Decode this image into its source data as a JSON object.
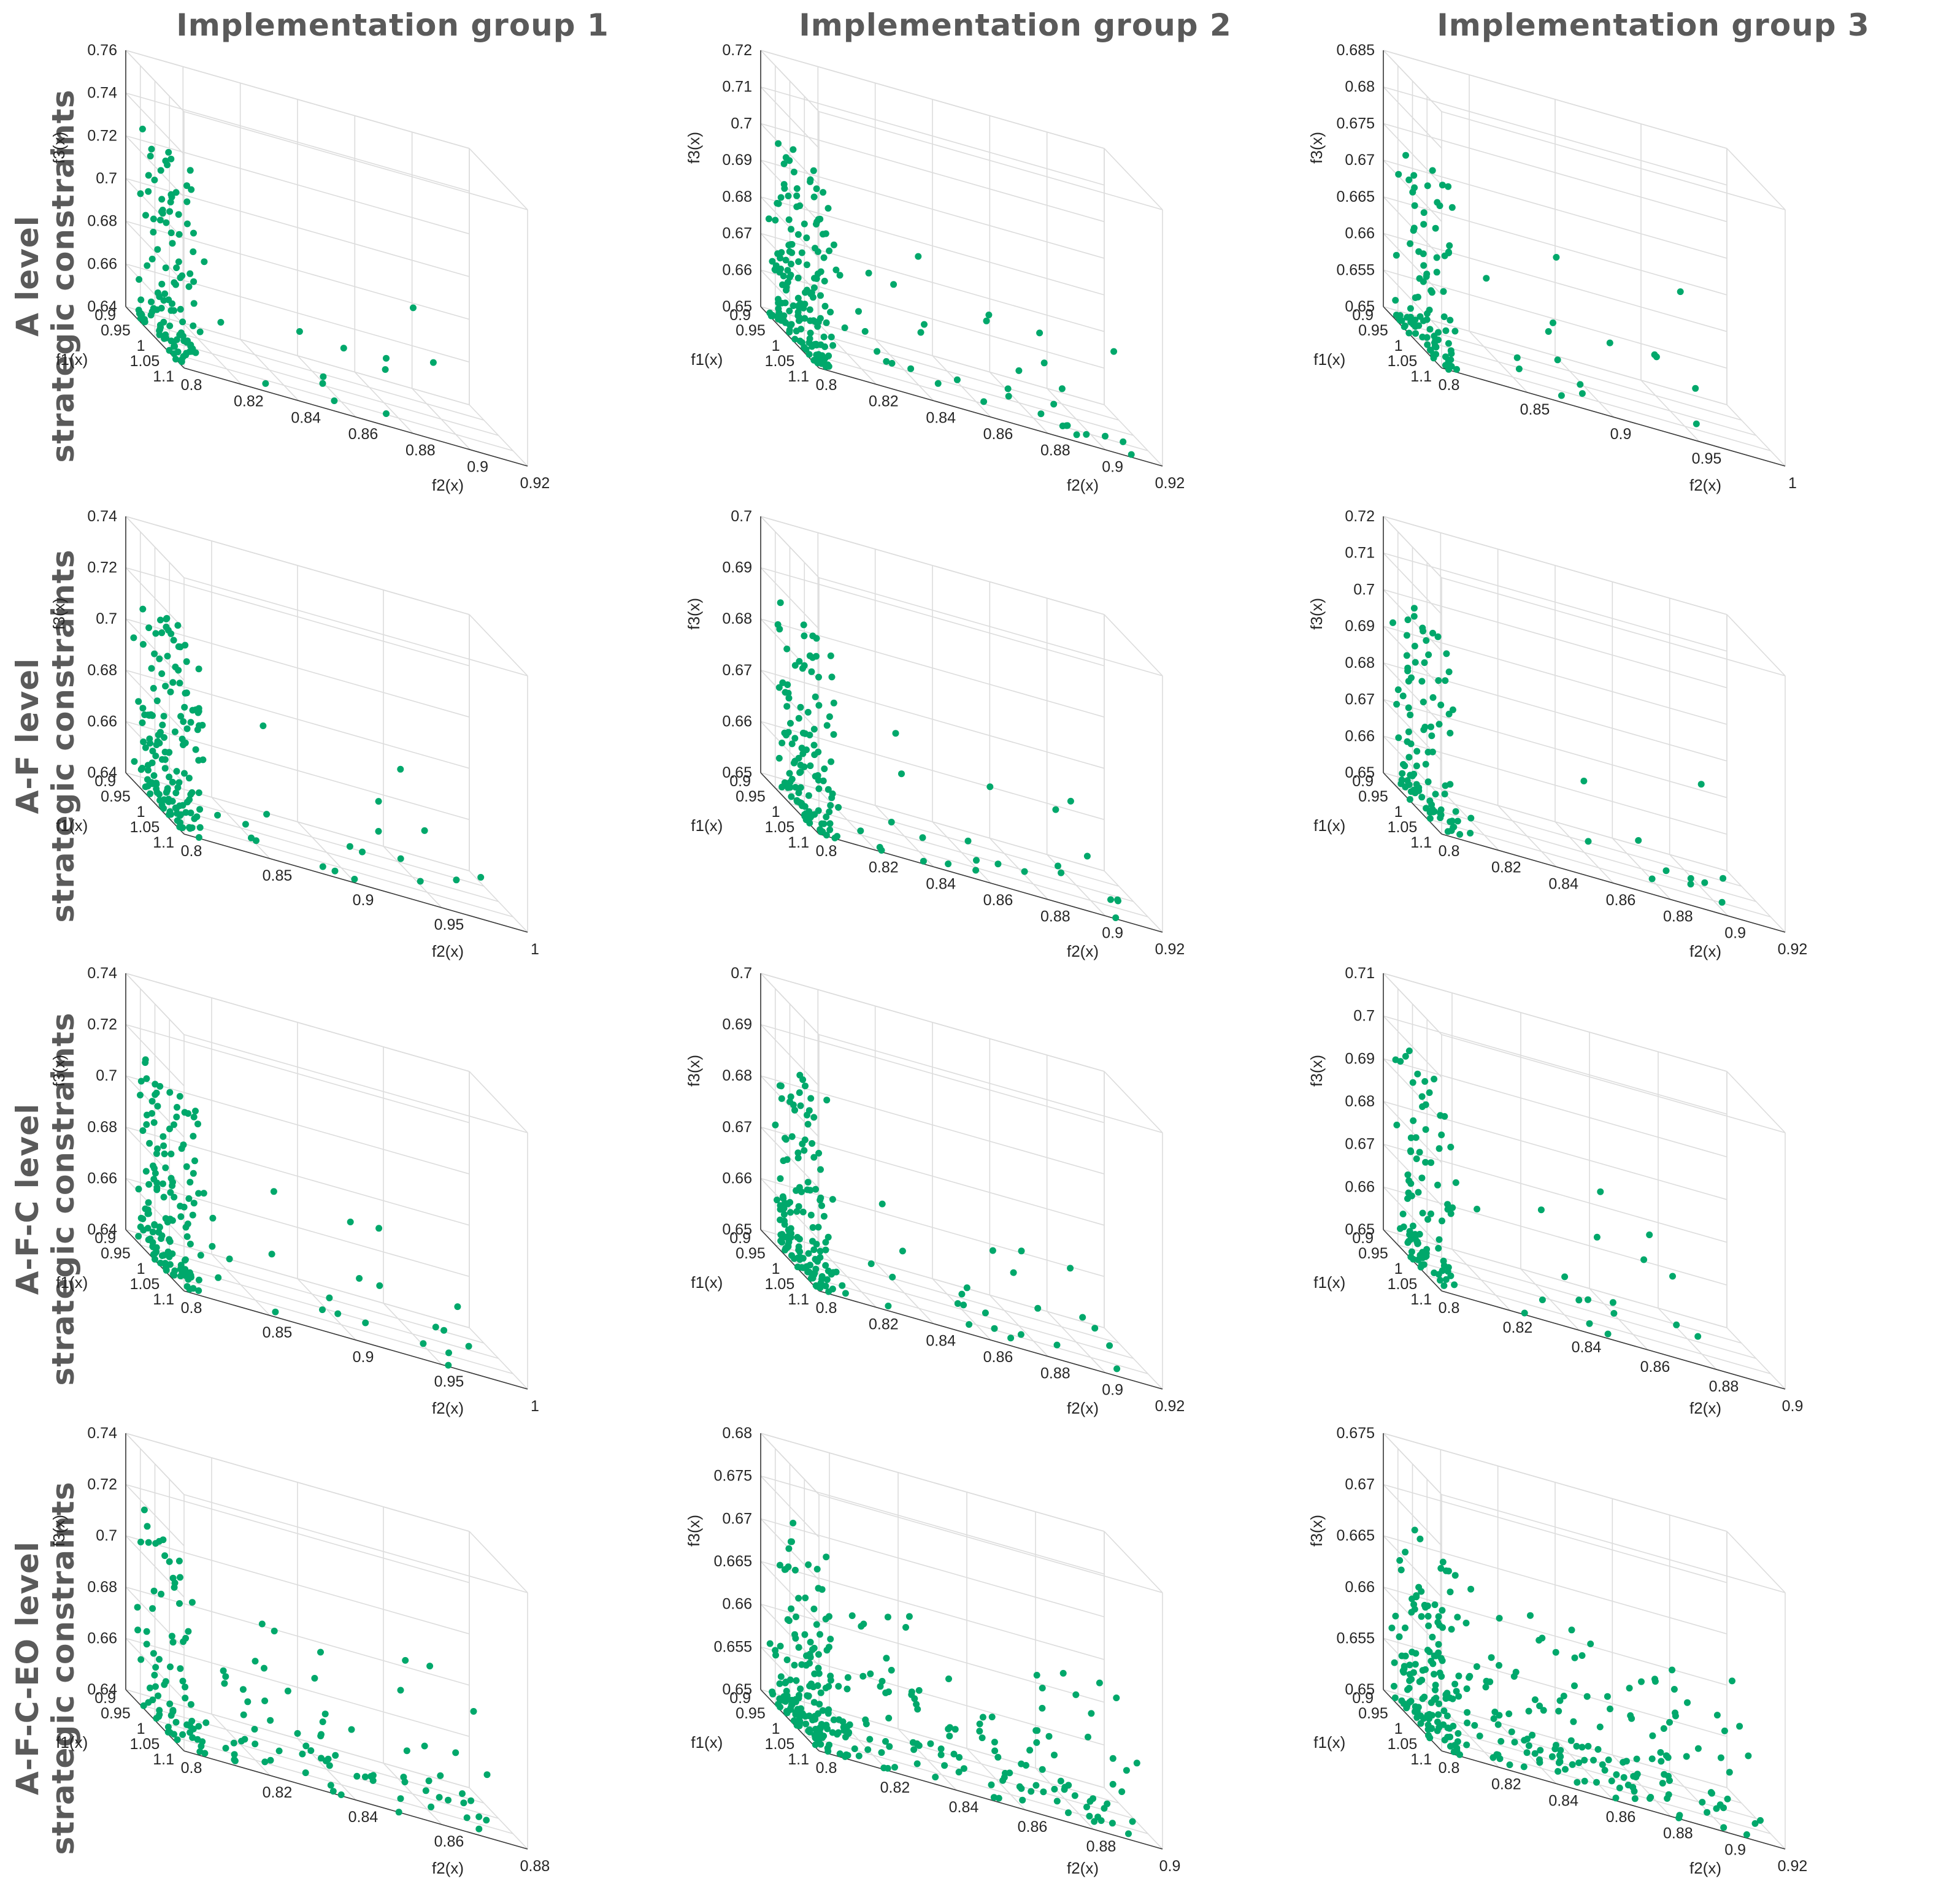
{
  "figure": {
    "column_titles": [
      "Implementation group 1",
      "Implementation group 2",
      "Implementation group 3"
    ],
    "row_titles": [
      [
        "A level",
        "strategic constraints"
      ],
      [
        "A-F level",
        "strategic constraints"
      ],
      [
        "A-F-C level",
        "strategic constraints"
      ],
      [
        "A-F-C-EO level",
        "strategic constraints"
      ]
    ],
    "point_color": "#00a86b",
    "axis_labels": {
      "x": "f2(x)",
      "y": "f1(x)",
      "z": "f3(x)"
    }
  },
  "chart_data": [
    {
      "type": "scatter",
      "row": "A level strategic constraints",
      "column": "Implementation group 1",
      "xlabel": "f2(x)",
      "ylabel": "f1(x)",
      "zlabel": "f3(x)",
      "x_ticks": [
        "0.8",
        "0.82",
        "0.84",
        "0.86",
        "0.88",
        "0.9",
        "0.92"
      ],
      "y_ticks": [
        "0.9",
        "0.95",
        "1",
        "1.05",
        "1.1"
      ],
      "z_ticks": [
        "0.64",
        "0.66",
        "0.68",
        "0.7",
        "0.72",
        "0.74",
        "0.76"
      ],
      "xlim": [
        0.8,
        0.92
      ],
      "ylim": [
        0.9,
        1.1
      ],
      "zlim": [
        0.64,
        0.76
      ],
      "approx_points": 130
    },
    {
      "type": "scatter",
      "row": "A level strategic constraints",
      "column": "Implementation group 2",
      "xlabel": "f2(x)",
      "ylabel": "f1(x)",
      "zlabel": "f3(x)",
      "x_ticks": [
        "0.8",
        "0.82",
        "0.84",
        "0.86",
        "0.88",
        "0.9",
        "0.92"
      ],
      "y_ticks": [
        "0.9",
        "0.95",
        "1",
        "1.05",
        "1.1"
      ],
      "z_ticks": [
        "0.65",
        "0.66",
        "0.67",
        "0.68",
        "0.69",
        "0.7",
        "0.71",
        "0.72"
      ],
      "xlim": [
        0.8,
        0.92
      ],
      "ylim": [
        0.9,
        1.1
      ],
      "zlim": [
        0.65,
        0.72
      ],
      "approx_points": 200
    },
    {
      "type": "scatter",
      "row": "A level strategic constraints",
      "column": "Implementation group 3",
      "xlabel": "f2(x)",
      "ylabel": "f1(x)",
      "zlabel": "f3(x)",
      "x_ticks": [
        "0.8",
        "0.85",
        "0.9",
        "0.95",
        "1"
      ],
      "y_ticks": [
        "0.9",
        "0.95",
        "1",
        "1.05",
        "1.1"
      ],
      "z_ticks": [
        "0.65",
        "0.655",
        "0.66",
        "0.665",
        "0.67",
        "0.675",
        "0.68",
        "0.685"
      ],
      "xlim": [
        0.8,
        1.0
      ],
      "ylim": [
        0.9,
        1.1
      ],
      "zlim": [
        0.65,
        0.685
      ],
      "approx_points": 110
    },
    {
      "type": "scatter",
      "row": "A-F level strategic constraints",
      "column": "Implementation group 1",
      "xlabel": "f2(x)",
      "ylabel": "f1(x)",
      "zlabel": "f3(x)",
      "x_ticks": [
        "0.8",
        "0.85",
        "0.9",
        "0.95",
        "1"
      ],
      "y_ticks": [
        "0.9",
        "0.95",
        "1",
        "1.05",
        "1.1"
      ],
      "z_ticks": [
        "0.64",
        "0.66",
        "0.68",
        "0.7",
        "0.72",
        "0.74"
      ],
      "xlim": [
        0.8,
        1.0
      ],
      "ylim": [
        0.9,
        1.1
      ],
      "zlim": [
        0.64,
        0.74
      ],
      "approx_points": 170
    },
    {
      "type": "scatter",
      "row": "A-F level strategic constraints",
      "column": "Implementation group 2",
      "xlabel": "f2(x)",
      "ylabel": "f1(x)",
      "zlabel": "f3(x)",
      "x_ticks": [
        "0.8",
        "0.82",
        "0.84",
        "0.86",
        "0.88",
        "0.9",
        "0.92"
      ],
      "y_ticks": [
        "0.9",
        "0.95",
        "1",
        "1.05",
        "1.1"
      ],
      "z_ticks": [
        "0.65",
        "0.66",
        "0.67",
        "0.68",
        "0.69",
        "0.7"
      ],
      "xlim": [
        0.8,
        0.92
      ],
      "ylim": [
        0.9,
        1.1
      ],
      "zlim": [
        0.65,
        0.7
      ],
      "approx_points": 140
    },
    {
      "type": "scatter",
      "row": "A-F level strategic constraints",
      "column": "Implementation group 3",
      "xlabel": "f2(x)",
      "ylabel": "f1(x)",
      "zlabel": "f3(x)",
      "x_ticks": [
        "0.8",
        "0.82",
        "0.84",
        "0.86",
        "0.88",
        "0.9",
        "0.92"
      ],
      "y_ticks": [
        "0.9",
        "0.95",
        "1",
        "1.05",
        "1.1"
      ],
      "z_ticks": [
        "0.65",
        "0.66",
        "0.67",
        "0.68",
        "0.69",
        "0.7",
        "0.71",
        "0.72"
      ],
      "xlim": [
        0.8,
        0.92
      ],
      "ylim": [
        0.9,
        1.1
      ],
      "zlim": [
        0.65,
        0.72
      ],
      "approx_points": 110
    },
    {
      "type": "scatter",
      "row": "A-F-C level strategic constraints",
      "column": "Implementation group 1",
      "xlabel": "f2(x)",
      "ylabel": "f1(x)",
      "zlabel": "f3(x)",
      "x_ticks": [
        "0.8",
        "0.85",
        "0.9",
        "0.95",
        "1"
      ],
      "y_ticks": [
        "0.9",
        "0.95",
        "1",
        "1.05",
        "1.1"
      ],
      "z_ticks": [
        "0.64",
        "0.66",
        "0.68",
        "0.7",
        "0.72",
        "0.74"
      ],
      "xlim": [
        0.8,
        1.0
      ],
      "ylim": [
        0.9,
        1.1
      ],
      "zlim": [
        0.64,
        0.74
      ],
      "approx_points": 160
    },
    {
      "type": "scatter",
      "row": "A-F-C level strategic constraints",
      "column": "Implementation group 2",
      "xlabel": "f2(x)",
      "ylabel": "f1(x)",
      "zlabel": "f3(x)",
      "x_ticks": [
        "0.8",
        "0.82",
        "0.84",
        "0.86",
        "0.88",
        "0.9",
        "0.92"
      ],
      "y_ticks": [
        "0.9",
        "0.95",
        "1",
        "1.05",
        "1.1"
      ],
      "z_ticks": [
        "0.65",
        "0.66",
        "0.67",
        "0.68",
        "0.69",
        "0.7"
      ],
      "xlim": [
        0.8,
        0.92
      ],
      "ylim": [
        0.9,
        1.1
      ],
      "zlim": [
        0.65,
        0.7
      ],
      "approx_points": 160
    },
    {
      "type": "scatter",
      "row": "A-F-C level strategic constraints",
      "column": "Implementation group 3",
      "xlabel": "f2(x)",
      "ylabel": "f1(x)",
      "zlabel": "f3(x)",
      "x_ticks": [
        "0.8",
        "0.82",
        "0.84",
        "0.86",
        "0.88",
        "0.9"
      ],
      "y_ticks": [
        "0.9",
        "0.95",
        "1",
        "1.05",
        "1.1"
      ],
      "z_ticks": [
        "0.65",
        "0.66",
        "0.67",
        "0.68",
        "0.69",
        "0.7",
        "0.71"
      ],
      "xlim": [
        0.8,
        0.9
      ],
      "ylim": [
        0.9,
        1.1
      ],
      "zlim": [
        0.65,
        0.71
      ],
      "approx_points": 110
    },
    {
      "type": "scatter",
      "row": "A-F-C-EO level strategic constraints",
      "column": "Implementation group 1",
      "xlabel": "f2(x)",
      "ylabel": "f1(x)",
      "zlabel": "f3(x)",
      "x_ticks": [
        "0.8",
        "0.82",
        "0.84",
        "0.86",
        "0.88"
      ],
      "y_ticks": [
        "0.9",
        "0.95",
        "1",
        "1.05",
        "1.1"
      ],
      "z_ticks": [
        "0.64",
        "0.66",
        "0.68",
        "0.7",
        "0.72",
        "0.74"
      ],
      "xlim": [
        0.8,
        0.88
      ],
      "ylim": [
        0.9,
        1.1
      ],
      "zlim": [
        0.64,
        0.74
      ],
      "approx_points": 150
    },
    {
      "type": "scatter",
      "row": "A-F-C-EO level strategic constraints",
      "column": "Implementation group 2",
      "xlabel": "f2(x)",
      "ylabel": "f1(x)",
      "zlabel": "f3(x)",
      "x_ticks": [
        "0.8",
        "0.82",
        "0.84",
        "0.86",
        "0.88",
        "0.9"
      ],
      "y_ticks": [
        "0.9",
        "0.95",
        "1",
        "1.05",
        "1.1"
      ],
      "z_ticks": [
        "0.65",
        "0.655",
        "0.66",
        "0.665",
        "0.67",
        "0.675",
        "0.68"
      ],
      "xlim": [
        0.8,
        0.9
      ],
      "ylim": [
        0.9,
        1.1
      ],
      "zlim": [
        0.65,
        0.68
      ],
      "approx_points": 280
    },
    {
      "type": "scatter",
      "row": "A-F-C-EO level strategic constraints",
      "column": "Implementation group 3",
      "xlabel": "f2(x)",
      "ylabel": "f1(x)",
      "zlabel": "f3(x)",
      "x_ticks": [
        "0.8",
        "0.82",
        "0.84",
        "0.86",
        "0.88",
        "0.9",
        "0.92"
      ],
      "y_ticks": [
        "0.9",
        "0.95",
        "1",
        "1.05",
        "1.1"
      ],
      "z_ticks": [
        "0.65",
        "0.655",
        "0.66",
        "0.665",
        "0.67",
        "0.675"
      ],
      "xlim": [
        0.8,
        0.92
      ],
      "ylim": [
        0.9,
        1.1
      ],
      "zlim": [
        0.65,
        0.675
      ],
      "approx_points": 290
    }
  ]
}
